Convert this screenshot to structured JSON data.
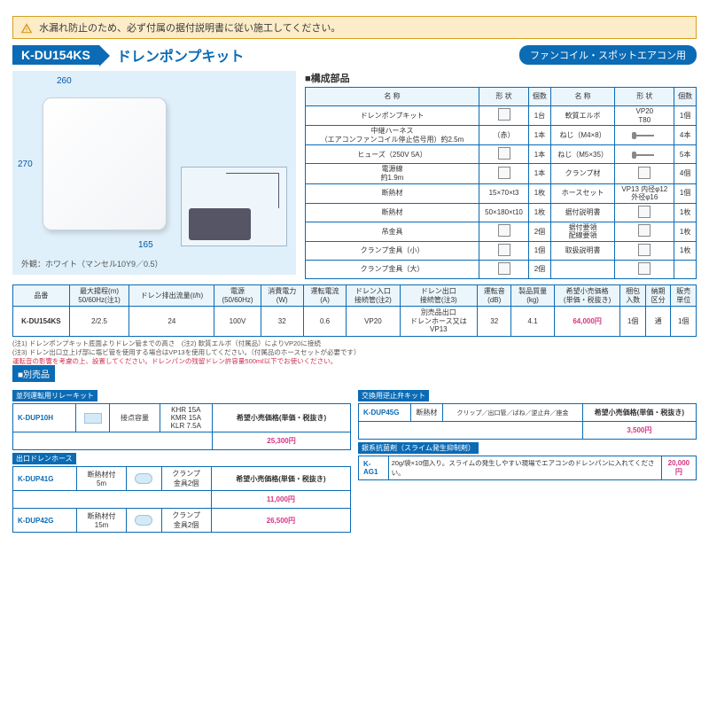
{
  "warning": "水漏れ防止のため、必ず付属の据付説明書に従い施工してください。",
  "model": "K-DU154KS",
  "title": "ドレンポンプキット",
  "use_badge": "ファンコイル・スポットエアコン用",
  "dimensions": {
    "w": "260",
    "h": "270",
    "d": "165"
  },
  "appearance": "外観：ホワイト（マンセル10Y9／0.5）",
  "parts": {
    "header": "■構成部品",
    "columns": [
      "名 称",
      "形 状",
      "個数",
      "名 称",
      "形 状",
      "個数"
    ],
    "rows": [
      [
        "ドレンポンプキット",
        "",
        "1台",
        "軟質エルボ",
        "VP20\nT80",
        "1個"
      ],
      [
        "中継ハーネス\n（エアコンファンコイル停止信号用）約2.5m",
        "（赤）",
        "1本",
        "ねじ（M4×8）",
        "",
        "4本"
      ],
      [
        "ヒューズ（250V 5A）",
        "",
        "1本",
        "ねじ（M5×35）",
        "",
        "5本"
      ],
      [
        "電源線\n約1.9m",
        "",
        "1本",
        "クランプ材",
        "",
        "4個"
      ],
      [
        "断熱材",
        "15×70×t3",
        "1枚",
        "ホースセット",
        "VP13 内径φ12\n外径φ16",
        "1個"
      ],
      [
        "断熱材",
        "50×180×t10",
        "1枚",
        "据付説明書",
        "",
        "1枚"
      ],
      [
        "吊金具",
        "",
        "2個",
        "据付要領\n配線要領",
        "",
        "1枚"
      ],
      [
        "クランプ金具（小）",
        "",
        "1個",
        "取扱説明書",
        "",
        "1枚"
      ],
      [
        "クランプ金具（大）",
        "",
        "2個",
        "",
        "",
        ""
      ]
    ]
  },
  "spec": {
    "headers": [
      "品番",
      "最大揚程(m)\n50/60Hz(注1)",
      "ドレン排出流量(ℓ/h)",
      "電源\n(50/60Hz)",
      "消費電力\n(W)",
      "運転電流\n(A)",
      "ドレン入口\n接続管(注2)",
      "ドレン出口\n接続管(注3)",
      "運転音\n(dB)",
      "製品質量\n(kg)",
      "希望小売価格\n(単価・税抜き)",
      "梱包\n入数",
      "納期\n区分",
      "販売\n単位"
    ],
    "row": [
      "K-DU154KS",
      "2/2.5",
      "24",
      "100V",
      "32",
      "0.6",
      "VP20",
      "別売品出口\nドレンホース又は\nVP13",
      "32",
      "4.1",
      "64,000円",
      "1個",
      "通",
      "1個"
    ]
  },
  "notes": {
    "n1": "(注1) ドレンポンプキット底面よりドレン管までの高さ　(注2) 軟質エルボ（付属品）によりVP20に接続",
    "n2": "(注3) ドレン出口立上げ部に塩ビ管を使用する場合はVP13を使用してください。（付属品のホースセットが必要です）",
    "n3": "運転音の影響を考慮の上、設置してください。ドレンパンの残留ドレン許容量500mℓ以下でお使いください。"
  },
  "accessory_header": "■別売品",
  "accessories_left": {
    "sub1": "並列運転用リレーキット",
    "row1": {
      "model": "K-DUP10H",
      "desc": "接点容量",
      "spec": "KHR 15A\nKMR 15A\nKLR 7.5A",
      "price": "25,300円"
    },
    "sub2": "出口ドレンホース",
    "row2a": {
      "model": "K-DUP41G",
      "desc": "断熱材付\n5m",
      "spec": "クランプ\n金具2個",
      "price": "11,000円"
    },
    "row2b": {
      "model": "K-DUP42G",
      "desc": "断熱材付\n15m",
      "spec": "クランプ\n金具2個",
      "price": "26,500円"
    }
  },
  "accessories_right": {
    "sub1": "交換用逆止弁キット",
    "row1": {
      "model": "K-DUP45G",
      "desc": "断熱材",
      "spec": "クリップ／出口管／ばね／逆止弁／座金",
      "price": "3,500円"
    },
    "sub2": "銀系抗菌剤（スライム発生抑制剤）",
    "row2": {
      "model": "K-AG1",
      "desc": "20g/袋×10個入り。スライムの発生しやすい現場でエアコンのドレンパンに入れてください。",
      "price": "20,000円"
    }
  },
  "price_header": "希望小売価格(単価・税抜き)"
}
